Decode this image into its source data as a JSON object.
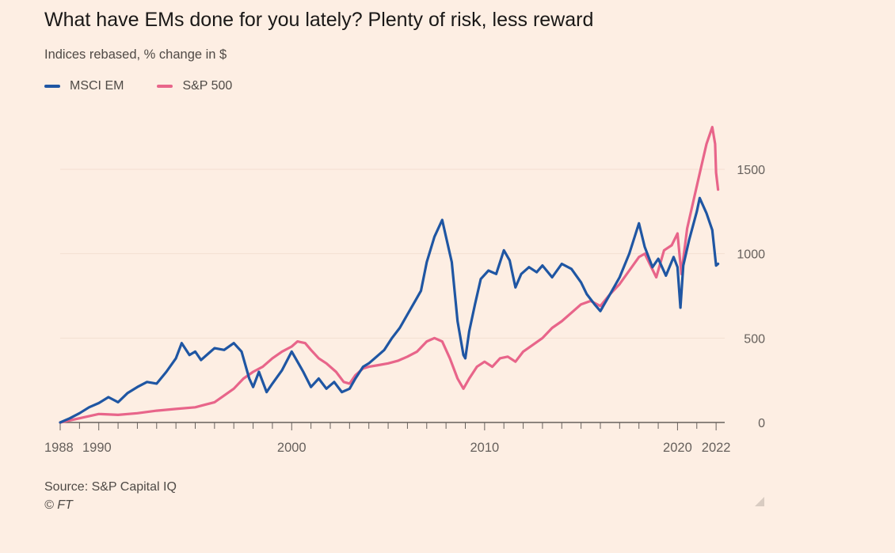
{
  "header": {
    "title": "What have EMs done for you lately? Plenty of risk, less reward",
    "subtitle": "Indices rebased, % change in $"
  },
  "footer": {
    "source": "Source: S&P Capital IQ",
    "credit": "© FT"
  },
  "colors": {
    "background": "#fdeee3",
    "msci_em": "#1f56a3",
    "sp500": "#e8658a",
    "gridline": "#f2dfd2",
    "axis": "#66605c",
    "tick_text": "#66605c"
  },
  "icons": {
    "resize_handle": "resize-handle-icon"
  },
  "chart_data": {
    "type": "line",
    "title": "What have EMs done for you lately? Plenty of risk, less reward",
    "subtitle": "Indices rebased, % change in $",
    "xlabel": "",
    "ylabel": "",
    "xlim": [
      1988.0,
      2022.2
    ],
    "ylim": [
      0,
      1800
    ],
    "x_ticks": [
      1988,
      1990,
      2000,
      2010,
      2020,
      2022
    ],
    "x_tick_labels": [
      "1988",
      "1990",
      "2000",
      "2010",
      "2020",
      "2022"
    ],
    "y_ticks": [
      0,
      500,
      1000,
      1500
    ],
    "y_tick_labels": [
      "0",
      "500",
      "1000",
      "1500"
    ],
    "y_axis_side": "right",
    "grid": true,
    "legend_position": "top-left",
    "series": [
      {
        "name": "MSCI EM",
        "color": "#1f56a3",
        "x": [
          1988.0,
          1988.5,
          1989.0,
          1989.5,
          1990.0,
          1990.5,
          1991.0,
          1991.5,
          1992.0,
          1992.5,
          1993.0,
          1993.5,
          1994.0,
          1994.3,
          1994.7,
          1995.0,
          1995.3,
          1995.7,
          1996.0,
          1996.5,
          1997.0,
          1997.4,
          1997.8,
          1998.0,
          1998.3,
          1998.7,
          1999.0,
          1999.5,
          2000.0,
          2000.2,
          2000.6,
          2001.0,
          2001.4,
          2001.8,
          2002.2,
          2002.6,
          2003.0,
          2003.3,
          2003.7,
          2004.0,
          2004.4,
          2004.8,
          2005.2,
          2005.6,
          2006.0,
          2006.4,
          2006.7,
          2007.0,
          2007.4,
          2007.8,
          2008.0,
          2008.3,
          2008.6,
          2008.9,
          2009.0,
          2009.2,
          2009.5,
          2009.8,
          2010.2,
          2010.6,
          2011.0,
          2011.3,
          2011.6,
          2011.9,
          2012.3,
          2012.7,
          2013.0,
          2013.5,
          2014.0,
          2014.5,
          2015.0,
          2015.3,
          2015.7,
          2016.0,
          2016.5,
          2017.0,
          2017.5,
          2018.0,
          2018.3,
          2018.7,
          2019.0,
          2019.4,
          2019.8,
          2020.0,
          2020.15,
          2020.3,
          2020.6,
          2021.0,
          2021.15,
          2021.5,
          2021.8,
          2022.0,
          2022.1
        ],
        "values": [
          0,
          25,
          55,
          90,
          115,
          150,
          120,
          175,
          210,
          240,
          230,
          300,
          380,
          470,
          400,
          420,
          370,
          410,
          440,
          430,
          470,
          420,
          260,
          210,
          300,
          180,
          230,
          310,
          420,
          380,
          300,
          210,
          260,
          200,
          240,
          180,
          200,
          260,
          330,
          350,
          390,
          430,
          500,
          560,
          640,
          720,
          780,
          950,
          1100,
          1200,
          1100,
          950,
          600,
          400,
          380,
          540,
          700,
          850,
          900,
          880,
          1020,
          960,
          800,
          880,
          920,
          890,
          930,
          860,
          940,
          910,
          830,
          760,
          700,
          660,
          760,
          860,
          1000,
          1180,
          1040,
          920,
          970,
          870,
          980,
          920,
          680,
          930,
          1080,
          1250,
          1330,
          1240,
          1140,
          930,
          940
        ]
      },
      {
        "name": "S&P 500",
        "color": "#e8658a",
        "x": [
          1988.0,
          1989.0,
          1990.0,
          1991.0,
          1992.0,
          1993.0,
          1994.0,
          1995.0,
          1996.0,
          1996.5,
          1997.0,
          1997.5,
          1998.0,
          1998.5,
          1999.0,
          1999.5,
          2000.0,
          2000.3,
          2000.7,
          2001.0,
          2001.4,
          2001.8,
          2002.3,
          2002.7,
          2003.0,
          2003.3,
          2003.7,
          2004.0,
          2004.5,
          2005.0,
          2005.5,
          2006.0,
          2006.5,
          2007.0,
          2007.4,
          2007.8,
          2008.2,
          2008.6,
          2008.9,
          2009.2,
          2009.6,
          2010.0,
          2010.4,
          2010.8,
          2011.2,
          2011.6,
          2012.0,
          2012.5,
          2013.0,
          2013.5,
          2014.0,
          2014.5,
          2015.0,
          2015.5,
          2016.0,
          2016.5,
          2017.0,
          2017.5,
          2018.0,
          2018.3,
          2018.9,
          2019.3,
          2019.7,
          2020.0,
          2020.2,
          2020.5,
          2020.9,
          2021.2,
          2021.5,
          2021.8,
          2021.95,
          2022.0,
          2022.1
        ],
        "values": [
          0,
          25,
          50,
          45,
          55,
          70,
          80,
          90,
          120,
          160,
          200,
          260,
          300,
          330,
          380,
          420,
          450,
          480,
          470,
          430,
          380,
          350,
          300,
          240,
          230,
          280,
          320,
          330,
          340,
          350,
          365,
          390,
          420,
          480,
          500,
          480,
          380,
          260,
          200,
          260,
          330,
          360,
          330,
          380,
          390,
          360,
          420,
          460,
          500,
          560,
          600,
          650,
          700,
          720,
          690,
          760,
          820,
          900,
          980,
          1000,
          860,
          1020,
          1050,
          1120,
          880,
          1150,
          1350,
          1500,
          1650,
          1750,
          1650,
          1480,
          1380
        ]
      }
    ]
  }
}
